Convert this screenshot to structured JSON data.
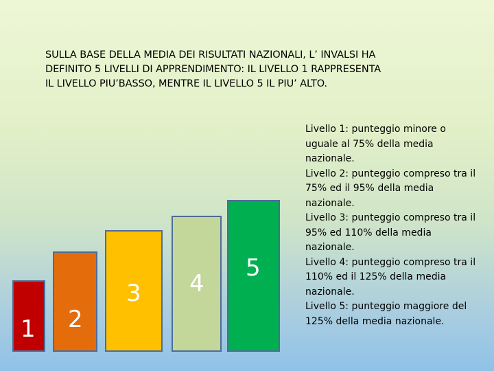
{
  "heading": {
    "line1": "SULLA BASE DELLA MEDIA DEI RISULTATI NAZIONALI, L’ INVALSI HA",
    "line2": "DEFINITO 5 LIVELLI DI APPRENDIMENTO: IL LIVELLO  1 RAPPRESENTA",
    "line3": "IL LIVELLO PIU’BASSO, MENTRE IL LIVELLO 5  IL  PIU’ ALTO."
  },
  "levels": [
    {
      "label": "1",
      "color": "#c00000",
      "text_color": "#ffffff"
    },
    {
      "label": "2",
      "color": "#e46c0a",
      "text_color": "#ffffff"
    },
    {
      "label": "3",
      "color": "#ffc000",
      "text_color": "#ffffff"
    },
    {
      "label": "4",
      "color": "#c4d79b",
      "text_color": "#ffffff"
    },
    {
      "label": "5",
      "color": "#00b050",
      "text_color": "#ffffff"
    }
  ],
  "legend": [
    "Livello 1: punteggio minore o uguale al 75% della media nazionale.",
    "Livello 2: punteggio compreso tra il 75% ed il 95% della media nazionale.",
    "Livello 3: punteggio compreso tra il 95% ed 110% della media nazionale.",
    "Livello 4: punteggio compreso tra il 110% ed il 125% della media nazionale.",
    "Livello 5: punteggio maggiore del 125% della media nazionale."
  ]
}
